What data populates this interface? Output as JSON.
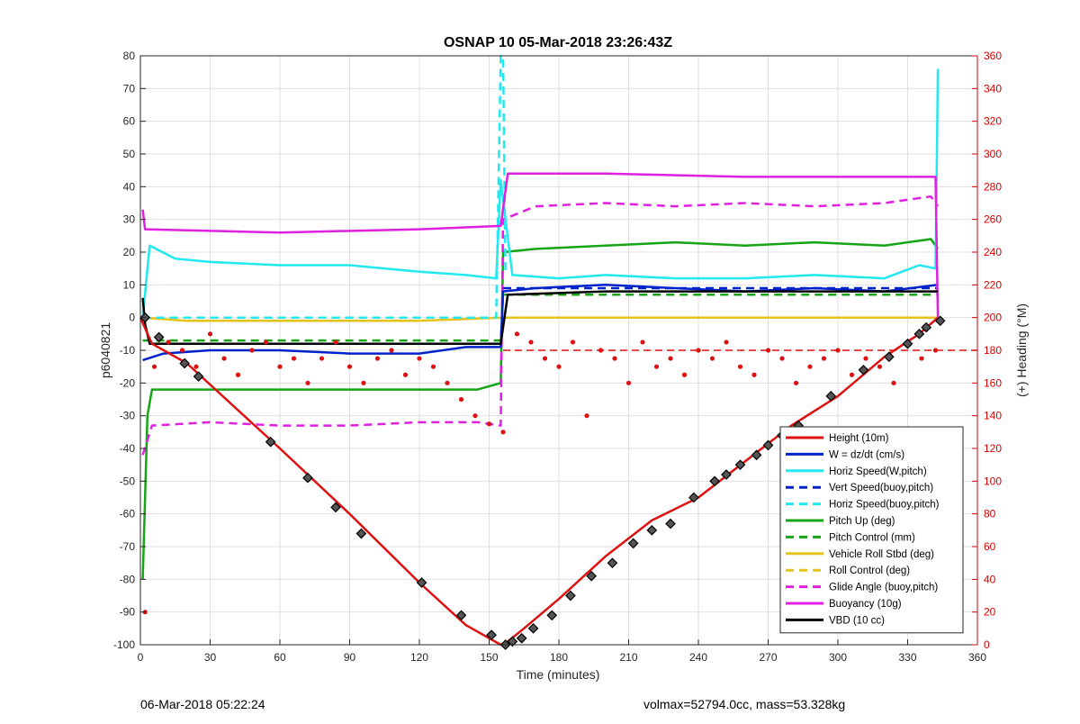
{
  "footer": {
    "left": "06-Mar-2018 05:22:24",
    "right": "volmax=52794.0cc, mass=53.328kg"
  },
  "chart_data": {
    "type": "line",
    "title": "OSNAP 10 05-Mar-2018 23:26:43Z",
    "xlabel": "Time (minutes)",
    "ylabel": "p6040821",
    "ylabel_right": "(+) Heading (°M)",
    "xlim": [
      0,
      360
    ],
    "ylim": [
      -100,
      80
    ],
    "ylim_right": [
      0,
      360
    ],
    "xticks": [
      0,
      30,
      60,
      90,
      120,
      150,
      180,
      210,
      240,
      270,
      300,
      330,
      360
    ],
    "yticks": [
      -100,
      -90,
      -80,
      -70,
      -60,
      -50,
      -40,
      -30,
      -20,
      -10,
      0,
      10,
      20,
      30,
      40,
      50,
      60,
      70,
      80
    ],
    "yticks_right": [
      0,
      20,
      40,
      60,
      80,
      100,
      120,
      140,
      160,
      180,
      200,
      220,
      240,
      260,
      280,
      300,
      320,
      340,
      360
    ],
    "grid": true,
    "legend_position": "lower-right",
    "colors": {
      "red": "#dd1111",
      "blue": "#0022cc",
      "cyan": "#22e8f0",
      "green": "#15a515",
      "yellow": "#e6c21a",
      "magenta": "#e020e0",
      "black": "#000000",
      "axis_right": "#d40000"
    },
    "series": [
      {
        "name": "Height (10m)",
        "color": "#dd1111",
        "style": "solid",
        "x": [
          0,
          5,
          20,
          40,
          60,
          90,
          120,
          140,
          155,
          158,
          165,
          180,
          200,
          220,
          240,
          260,
          280,
          300,
          320,
          335,
          343
        ],
        "y": [
          0,
          -8,
          -14,
          -27,
          -40,
          -60,
          -81,
          -94,
          -100,
          -99,
          -95,
          -86,
          -73,
          -62,
          -55,
          -44,
          -33,
          -24,
          -12,
          -5,
          0
        ]
      },
      {
        "name": "W = dz/dt (cm/s)",
        "color": "#0022cc",
        "style": "solid",
        "x": [
          1,
          10,
          30,
          60,
          90,
          120,
          140,
          155,
          156,
          170,
          200,
          230,
          260,
          290,
          320,
          343
        ],
        "y": [
          -13,
          -11,
          -10,
          -10,
          -11,
          -11,
          -9,
          -9,
          8,
          9,
          10,
          9,
          8,
          9,
          8,
          10
        ]
      },
      {
        "name": "Horiz Speed(W,pitch)",
        "color": "#22e8f0",
        "style": "solid",
        "x": [
          1,
          4,
          15,
          30,
          60,
          90,
          120,
          140,
          153,
          155,
          160,
          180,
          200,
          230,
          260,
          290,
          320,
          335,
          342,
          343
        ],
        "y": [
          0,
          22,
          18,
          17,
          16,
          16,
          14,
          13,
          12,
          42,
          13,
          12,
          13,
          12,
          12,
          13,
          12,
          16,
          15,
          76
        ]
      },
      {
        "name": "Vert Speed(buoy,pitch)",
        "color": "#0022cc",
        "style": "dashed",
        "x": [
          156,
          343
        ],
        "y": [
          9,
          9
        ]
      },
      {
        "name": "Horiz Speed(buoy,pitch)",
        "color": "#22e8f0",
        "style": "dashed",
        "x": [
          1,
          153,
          155,
          156,
          157
        ],
        "y": [
          0,
          0,
          80,
          80,
          14
        ]
      },
      {
        "name": "Pitch Up (deg)",
        "color": "#15a515",
        "style": "solid",
        "x": [
          1,
          3,
          5,
          20,
          60,
          90,
          120,
          145,
          155,
          156,
          170,
          200,
          230,
          260,
          290,
          320,
          340,
          343
        ],
        "y": [
          -80,
          -30,
          -22,
          -22,
          -22,
          -22,
          -22,
          -22,
          -20,
          20,
          21,
          22,
          23,
          22,
          23,
          22,
          24,
          21
        ]
      },
      {
        "name": "Pitch Control (mm)",
        "color": "#15a515",
        "style": "dashed",
        "x": [
          1,
          155,
          156,
          343
        ],
        "y": [
          -7,
          -7,
          7,
          7
        ]
      },
      {
        "name": "Vehicle Roll Stbd (deg)",
        "color": "#e6c21a",
        "style": "solid",
        "x": [
          1,
          20,
          60,
          120,
          155,
          156,
          200,
          260,
          320,
          343
        ],
        "y": [
          0,
          -1,
          -1,
          -1,
          0,
          0,
          0,
          0,
          0,
          0
        ]
      },
      {
        "name": "Roll Control (deg)",
        "color": "#e6c21a",
        "style": "dashed",
        "x": [
          1,
          20,
          60,
          120,
          155,
          156,
          200,
          260,
          320,
          343
        ],
        "y": [
          0,
          0,
          0,
          0,
          0,
          0,
          0,
          0,
          0,
          0
        ]
      },
      {
        "name": "Glide Angle (buoy,pitch)",
        "color": "#e020e0",
        "style": "dashed",
        "x": [
          1,
          5,
          30,
          60,
          90,
          120,
          145,
          155,
          156,
          170,
          200,
          230,
          260,
          290,
          320,
          340,
          343
        ],
        "y": [
          -42,
          -33,
          -32,
          -33,
          -33,
          -32,
          -32,
          -33,
          30,
          34,
          35,
          34,
          35,
          34,
          35,
          37,
          34
        ]
      },
      {
        "name": "Buoyancy (10g)",
        "color": "#e020e0",
        "style": "solid",
        "x": [
          1,
          2,
          60,
          120,
          155,
          158,
          200,
          260,
          320,
          342,
          343
        ],
        "y": [
          33,
          27,
          26,
          27,
          28,
          44,
          44,
          43,
          43,
          43,
          0
        ]
      },
      {
        "name": "VBD (10 cc)",
        "color": "#000000",
        "style": "solid",
        "x": [
          1,
          2,
          4,
          155,
          158,
          200,
          260,
          320,
          343
        ],
        "y": [
          6,
          -2,
          -8,
          -8,
          7,
          8,
          8,
          8,
          8
        ]
      }
    ],
    "heading_dots": {
      "color": "#dd1111",
      "axis": "right",
      "reference_heading": 180,
      "x": [
        2,
        6,
        12,
        18,
        24,
        30,
        36,
        42,
        48,
        54,
        60,
        66,
        72,
        78,
        84,
        90,
        96,
        102,
        108,
        114,
        120,
        126,
        132,
        138,
        144,
        150,
        156,
        162,
        168,
        174,
        180,
        186,
        192,
        198,
        204,
        210,
        216,
        222,
        228,
        234,
        240,
        246,
        252,
        258,
        264,
        270,
        276,
        282,
        288,
        294,
        300,
        306,
        312,
        318,
        324,
        330,
        336,
        342
      ],
      "y": [
        20,
        170,
        185,
        180,
        170,
        190,
        175,
        165,
        180,
        185,
        170,
        175,
        160,
        175,
        185,
        170,
        160,
        175,
        180,
        165,
        175,
        170,
        160,
        150,
        140,
        135,
        130,
        190,
        185,
        175,
        170,
        185,
        140,
        180,
        175,
        160,
        185,
        170,
        175,
        165,
        180,
        175,
        185,
        170,
        165,
        180,
        175,
        160,
        170,
        175,
        180,
        165,
        175,
        170,
        160,
        185,
        175,
        180
      ]
    },
    "vbd_markers": {
      "x": [
        2,
        8,
        19,
        25,
        56,
        72,
        84,
        95,
        121,
        138,
        151,
        157,
        160,
        164,
        169,
        177,
        185,
        194,
        203,
        212,
        220,
        228,
        238,
        247,
        252,
        258,
        265,
        270,
        276,
        283,
        297,
        311,
        322,
        330,
        335,
        338,
        344
      ],
      "y": [
        0,
        -6,
        -14,
        -18,
        -38,
        -49,
        -58,
        -66,
        -81,
        -91,
        -97,
        -100,
        -99,
        -98,
        -95,
        -91,
        -85,
        -79,
        -75,
        -69,
        -65,
        -63,
        -55,
        -50,
        -48,
        -45,
        -42,
        -39,
        -36,
        -33,
        -24,
        -16,
        -12,
        -8,
        -5,
        -3,
        -1
      ]
    }
  }
}
